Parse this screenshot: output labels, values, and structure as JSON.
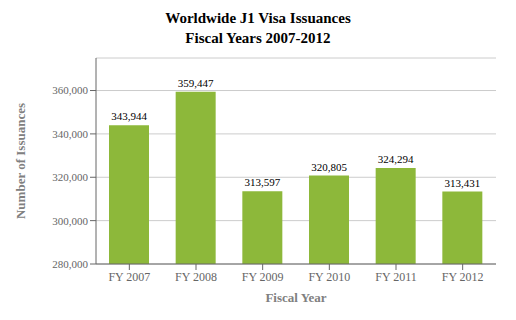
{
  "chart_data": {
    "type": "bar",
    "title": "Worldwide J1 Visa Issuances",
    "subtitle": "Fiscal Years 2007-2012",
    "x_label": "Fiscal Year",
    "y_label": "Number of Issuances",
    "categories": [
      "FY 2007",
      "FY 2008",
      "FY 2009",
      "FY 2010",
      "FY 2011",
      "FY 2012"
    ],
    "values": [
      343944,
      359447,
      313597,
      320805,
      324294,
      313431
    ],
    "value_labels": [
      "343,944",
      "359,447",
      "313,597",
      "320,805",
      "324,294",
      "313,431"
    ],
    "data_labels": true,
    "color": "#8db83a",
    "ylim": [
      280000,
      375000
    ],
    "yticks": [
      {
        "value": 280000,
        "label": "280,000"
      },
      {
        "value": 300000,
        "label": "300,000"
      },
      {
        "value": 320000,
        "label": "320,000"
      },
      {
        "value": 340000,
        "label": "340,000"
      },
      {
        "value": 360000,
        "label": "360,000"
      }
    ],
    "grid": true
  }
}
